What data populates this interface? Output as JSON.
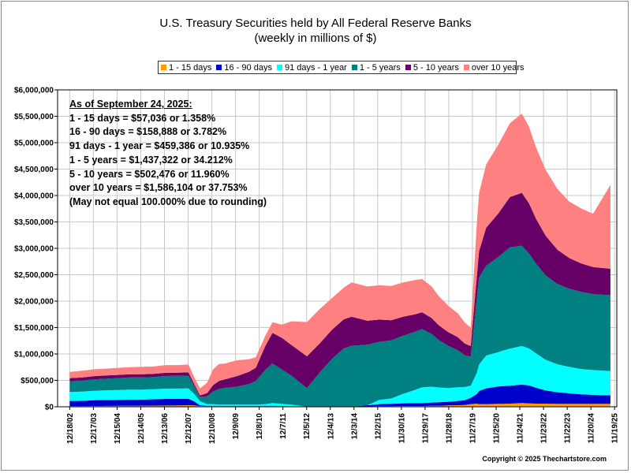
{
  "chart_data": {
    "type": "area",
    "stacked": true,
    "title": "U.S. Treasury Securities held by All Federal Reserve Banks",
    "subtitle": "(weekly in millions of $)",
    "ylim": [
      0,
      6000000
    ],
    "y_ticks": [
      "$0",
      "$500,000",
      "$1,000,000",
      "$1,500,000",
      "$2,000,000",
      "$2,500,000",
      "$3,000,000",
      "$3,500,000",
      "$4,000,000",
      "$4,500,000",
      "$5,000,000",
      "$5,500,000",
      "$6,000,000"
    ],
    "x_ticks": [
      "12/18/02",
      "12/17/03",
      "12/15/04",
      "12/14/05",
      "12/13/06",
      "12/12/07",
      "12/10/08",
      "12/9/09",
      "12/8/10",
      "12/7/11",
      "12/5/12",
      "12/4/13",
      "12/3/14",
      "12/2/15",
      "11/30/16",
      "11/29/17",
      "11/28/18",
      "11/27/19",
      "11/25/20",
      "11/24/21",
      "11/23/22",
      "11/22/23",
      "11/20/24",
      "11/19/25"
    ],
    "grid": true,
    "legend_position": "top",
    "x": [
      2002.96,
      2003.5,
      2004.0,
      2004.5,
      2005.0,
      2005.5,
      2006.0,
      2006.5,
      2007.0,
      2007.5,
      2007.96,
      2008.2,
      2008.45,
      2008.75,
      2009.0,
      2009.25,
      2009.5,
      2010.0,
      2010.5,
      2010.8,
      2011.2,
      2011.5,
      2011.9,
      2012.3,
      2012.95,
      2013.5,
      2014.0,
      2014.5,
      2014.83,
      2015.5,
      2016.0,
      2016.5,
      2017.0,
      2017.5,
      2017.8,
      2018.2,
      2018.5,
      2018.9,
      2019.3,
      2019.6,
      2019.85,
      2020.1,
      2020.2,
      2020.5,
      2021.0,
      2021.5,
      2022.0,
      2022.3,
      2022.6,
      2023.0,
      2023.5,
      2024.0,
      2024.5,
      2025.0,
      2025.73
    ],
    "series": [
      {
        "name": "1 - 15 days",
        "color": "#FF9900",
        "values": [
          10000,
          12000,
          15000,
          17000,
          18000,
          20000,
          21000,
          22000,
          24000,
          25000,
          30000,
          25000,
          15000,
          10000,
          10000,
          10000,
          10000,
          10000,
          10000,
          10000,
          10000,
          10000,
          10000,
          5000,
          5000,
          5000,
          5000,
          5000,
          5000,
          8000,
          10000,
          12000,
          15000,
          15000,
          15000,
          20000,
          20000,
          25000,
          30000,
          35000,
          50000,
          60000,
          50000,
          50000,
          55000,
          60000,
          70000,
          65000,
          60000,
          60000,
          55000,
          55000,
          55000,
          55000,
          57000
        ]
      },
      {
        "name": "16 - 90 days",
        "color": "#0000CC",
        "values": [
          100000,
          100000,
          110000,
          110000,
          115000,
          115000,
          115000,
          120000,
          125000,
          125000,
          120000,
          80000,
          10000,
          10000,
          10000,
          10000,
          10000,
          10000,
          10000,
          10000,
          10000,
          10000,
          5000,
          5000,
          0,
          0,
          0,
          0,
          0,
          20000,
          40000,
          45000,
          50000,
          55000,
          55000,
          60000,
          65000,
          70000,
          80000,
          90000,
          120000,
          180000,
          250000,
          300000,
          330000,
          340000,
          350000,
          340000,
          300000,
          250000,
          220000,
          200000,
          180000,
          170000,
          159000
        ]
      },
      {
        "name": "91 days - 1 year",
        "color": "#00FFFF",
        "values": [
          170000,
          175000,
          180000,
          185000,
          185000,
          190000,
          190000,
          190000,
          195000,
          195000,
          200000,
          140000,
          80000,
          30000,
          30000,
          20000,
          20000,
          20000,
          20000,
          20000,
          30000,
          50000,
          40000,
          30000,
          0,
          0,
          0,
          0,
          0,
          0,
          80000,
          100000,
          180000,
          250000,
          300000,
          300000,
          280000,
          260000,
          260000,
          250000,
          230000,
          400000,
          500000,
          620000,
          650000,
          700000,
          730000,
          700000,
          650000,
          580000,
          530000,
          500000,
          480000,
          470000,
          459000
        ]
      },
      {
        "name": "1 - 5 years",
        "color": "#008080",
        "values": [
          200000,
          210000,
          215000,
          220000,
          225000,
          230000,
          230000,
          230000,
          240000,
          240000,
          240000,
          150000,
          80000,
          150000,
          240000,
          300000,
          320000,
          340000,
          390000,
          450000,
          650000,
          750000,
          650000,
          550000,
          350000,
          650000,
          900000,
          1100000,
          1150000,
          1150000,
          1100000,
          1100000,
          1100000,
          1100000,
          1100000,
          1000000,
          900000,
          800000,
          700000,
          600000,
          550000,
          1400000,
          1650000,
          1700000,
          1800000,
          1920000,
          1900000,
          1800000,
          1700000,
          1600000,
          1520000,
          1480000,
          1460000,
          1440000,
          1437000
        ]
      },
      {
        "name": "5 - 10 years",
        "color": "#660066",
        "values": [
          60000,
          60000,
          60000,
          60000,
          60000,
          60000,
          60000,
          60000,
          60000,
          60000,
          60000,
          40000,
          30000,
          60000,
          120000,
          150000,
          160000,
          200000,
          230000,
          250000,
          450000,
          580000,
          600000,
          580000,
          600000,
          550000,
          550000,
          550000,
          550000,
          450000,
          420000,
          380000,
          360000,
          330000,
          320000,
          300000,
          280000,
          260000,
          250000,
          220000,
          200000,
          400000,
          500000,
          720000,
          820000,
          950000,
          1000000,
          950000,
          850000,
          750000,
          650000,
          580000,
          540000,
          510000,
          502000
        ]
      },
      {
        "name": "over 10 years",
        "color": "#FF8080",
        "values": [
          120000,
          125000,
          130000,
          130000,
          135000,
          135000,
          140000,
          140000,
          145000,
          145000,
          150000,
          130000,
          130000,
          200000,
          300000,
          320000,
          300000,
          300000,
          240000,
          200000,
          200000,
          200000,
          250000,
          450000,
          650000,
          650000,
          600000,
          600000,
          650000,
          650000,
          650000,
          650000,
          650000,
          650000,
          630000,
          600000,
          550000,
          500000,
          450000,
          400000,
          350000,
          1000000,
          1100000,
          1200000,
          1300000,
          1400000,
          1500000,
          1450000,
          1350000,
          1250000,
          1150000,
          1070000,
          1040000,
          1010000,
          1586000
        ]
      }
    ],
    "annotation": {
      "heading": "As of September 24, 2025:",
      "lines": [
        "1 - 15 days = $57,036 or 1.358%",
        "16 - 90 days = $158,888 or 3.782%",
        "91 days - 1 year = $459,386 or 10.935%",
        "1 - 5 years = $1,437,322 or 34.212%",
        "5 - 10 years = $502,476 or 11.960%",
        "over 10 years = $1,586,104 or 37.753%",
        "(May not equal 100.000% due to rounding)"
      ]
    }
  },
  "copyright": "Copyright © 2025 Thechartstore.com"
}
